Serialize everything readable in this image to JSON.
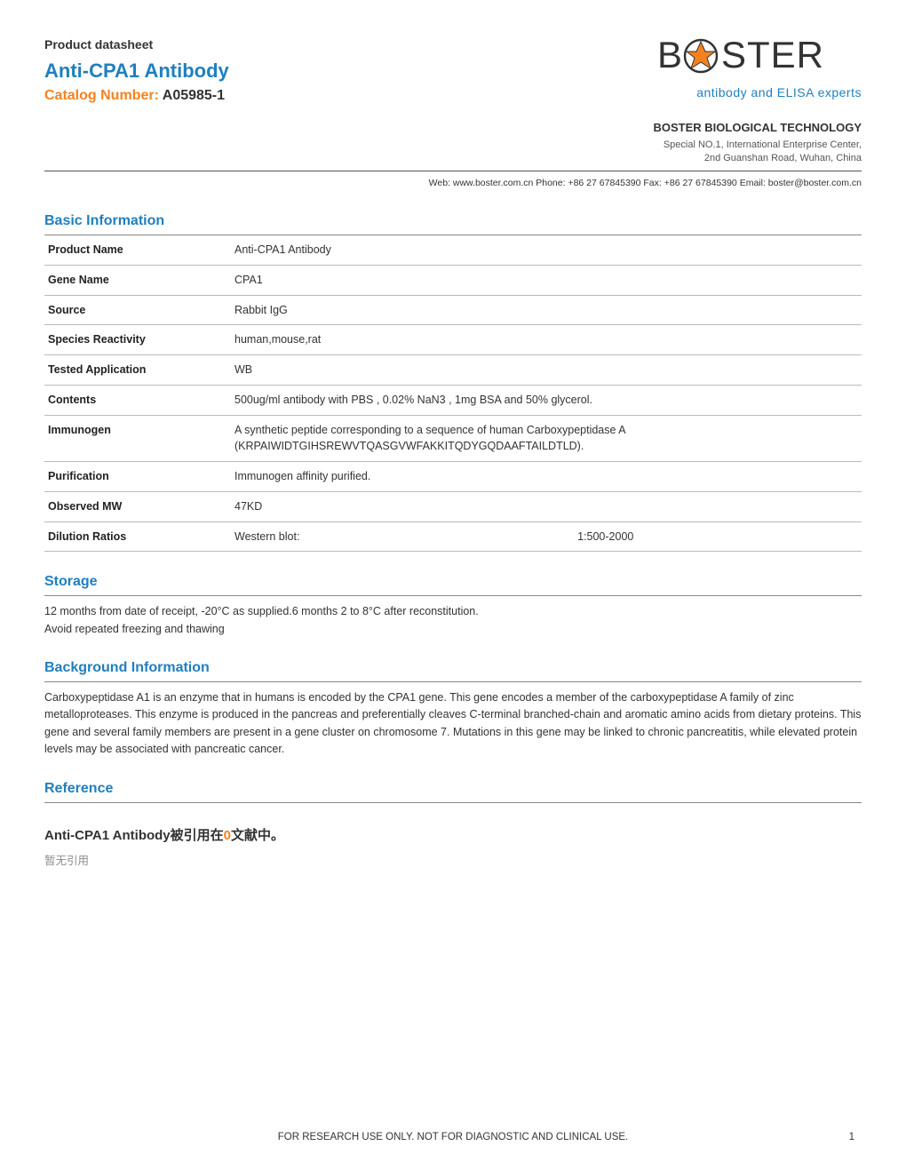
{
  "colors": {
    "brand_blue": "#1f7fbf",
    "brand_orange": "#f5821f",
    "text": "#333333",
    "muted": "#8c8c8c",
    "rule": "#555555",
    "row_rule": "#bbbbbb"
  },
  "header": {
    "datasheet_label": "Product datasheet",
    "product_title": "Anti-CPA1 Antibody",
    "catalog_label": "Catalog Number:",
    "catalog_number": " A05985-1"
  },
  "logo": {
    "text_before": "B",
    "text_after": "STER",
    "tagline": "antibody and ELISA experts"
  },
  "company": {
    "name": "BOSTER BIOLOGICAL TECHNOLOGY",
    "addr_line1": "Special NO.1, International Enterprise Center,",
    "addr_line2": "2nd Guanshan Road, Wuhan, China"
  },
  "contact_line": "Web: www.boster.com.cn Phone: +86 27 67845390 Fax: +86 27 67845390 Email: boster@boster.com.cn",
  "sections": {
    "basic_info_title": "Basic Information",
    "storage_title": "Storage",
    "background_title": "Background Information",
    "reference_title": "Reference"
  },
  "basic_info": {
    "rows": [
      {
        "label": "Product Name",
        "value": "Anti-CPA1 Antibody"
      },
      {
        "label": "Gene Name",
        "value": "CPA1"
      },
      {
        "label": "Source",
        "value": "Rabbit IgG"
      },
      {
        "label": "Species Reactivity",
        "value": "human,mouse,rat"
      },
      {
        "label": "Tested Application",
        "value": "WB"
      },
      {
        "label": "Contents",
        "value": "500ug/ml antibody with PBS ,  0.02% NaN3 , 1mg BSA and 50% glycerol."
      },
      {
        "label": "Immunogen",
        "value": "A synthetic peptide corresponding to a sequence of human Carboxypeptidase A (KRPAIWIDTGIHSREWVTQASGVWFAKKITQDYGQDAAFTAILDTLD)."
      },
      {
        "label": "Purification",
        "value": "Immunogen affinity purified."
      },
      {
        "label": "Observed MW",
        "value": "47KD"
      }
    ],
    "dilution": {
      "label": "Dilution Ratios",
      "method": "Western blot:",
      "ratio": "1:500-2000"
    }
  },
  "storage_body": "12 months from date of receipt,  -20°C as supplied.6 months 2 to 8°C after reconstitution.\n Avoid repeated freezing and thawing",
  "background_body": "Carboxypeptidase A1 is an enzyme that in humans is encoded by the CPA1 gene. This gene encodes a member of the carboxypeptidase A family of zinc metalloproteases. This enzyme is produced in the pancreas and preferentially cleaves C-terminal branched-chain and aromatic amino acids from dietary proteins. This gene and several family members are present in a gene cluster on chromosome 7. Mutations in this gene may be linked to chronic pancreatitis, while elevated protein levels may be associated with pancreatic cancer.",
  "reference": {
    "heading_product": "Anti-CPA1 Antibody",
    "heading_cn_prefix": "被引用在",
    "heading_count": "0",
    "heading_cn_suffix": "文献中。",
    "none_text": "暂无引用"
  },
  "footer": {
    "disclaimer": "FOR RESEARCH USE ONLY. NOT FOR DIAGNOSTIC AND CLINICAL USE.",
    "page": "1"
  }
}
